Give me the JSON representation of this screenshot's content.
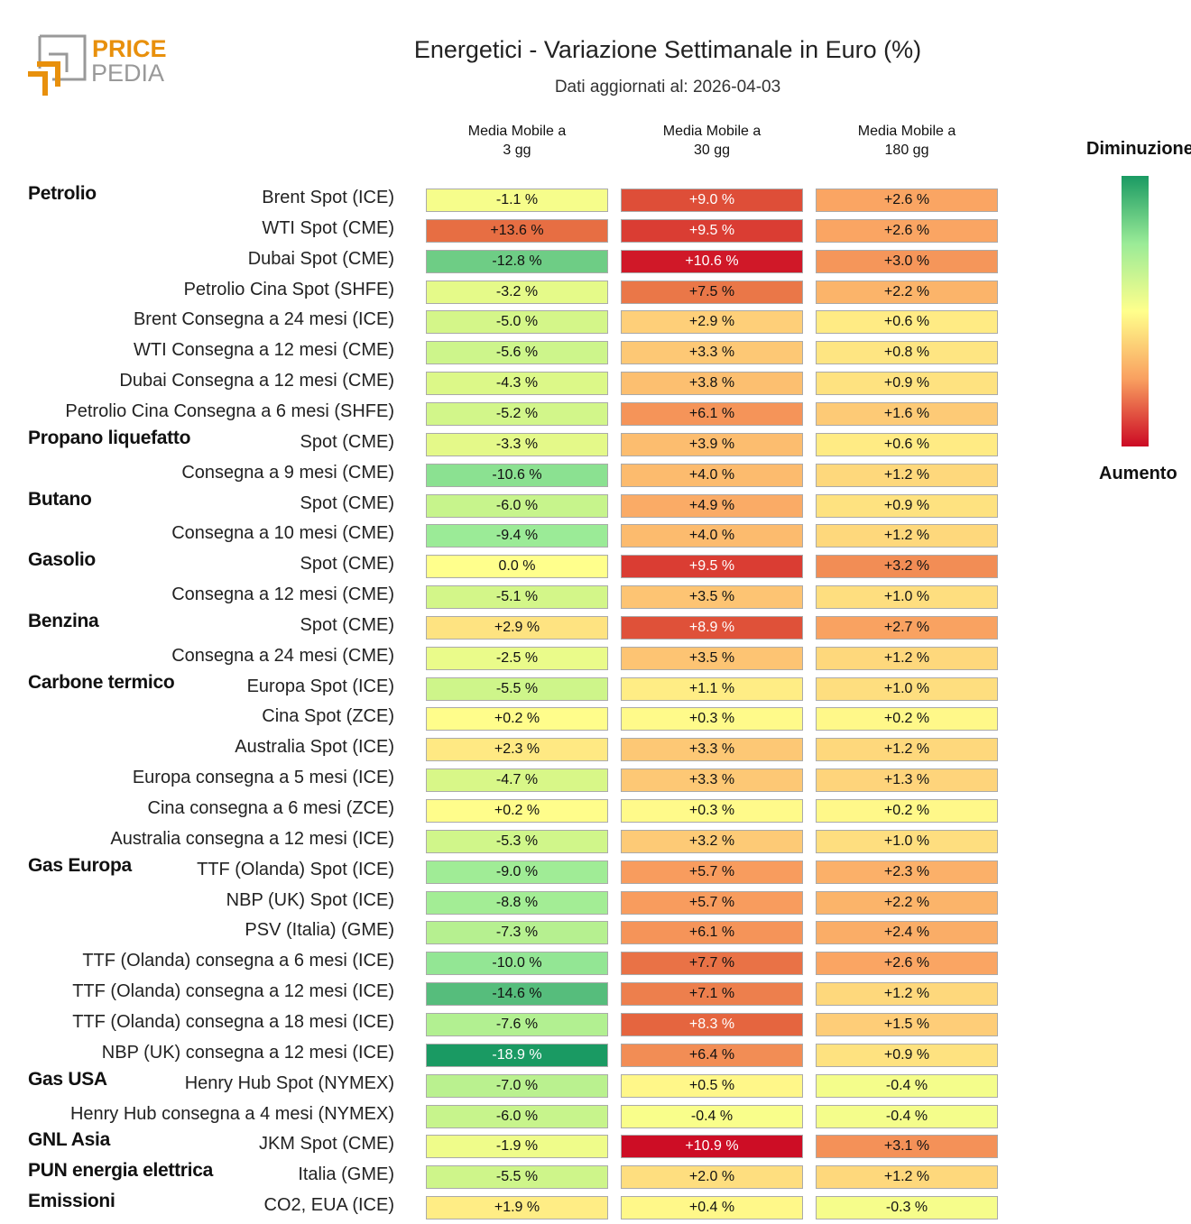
{
  "logo_text": [
    "PRICE",
    "PEDIA"
  ],
  "title": "Energetici - Variazione Settimanale in Euro (%)",
  "subtitle": "Dati aggiornati al: 2026-04-03",
  "legend": {
    "top": "Diminuzione",
    "bottom": "Aumento"
  },
  "chart_data": {
    "type": "heatmap",
    "title": "Energetici - Variazione Settimanale in Euro (%)",
    "columns": [
      "Media Mobile a\n3 gg",
      "Media Mobile a\n30 gg",
      "Media Mobile a\n180 gg"
    ],
    "unit": "%",
    "colorscale": {
      "negative": "#1a9a63",
      "zero": "#ffff8c",
      "positive": "#cc0a24"
    },
    "rows": [
      {
        "group": "Petrolio",
        "label": "Brent Spot (ICE)",
        "values": [
          -1.1,
          9.0,
          2.6
        ]
      },
      {
        "group": "",
        "label": "WTI Spot (CME)",
        "values": [
          13.6,
          9.5,
          2.6
        ]
      },
      {
        "group": "",
        "label": "Dubai Spot (CME)",
        "values": [
          -12.8,
          10.6,
          3.0
        ]
      },
      {
        "group": "",
        "label": "Petrolio Cina Spot (SHFE)",
        "values": [
          -3.2,
          7.5,
          2.2
        ]
      },
      {
        "group": "",
        "label": "Brent Consegna a 24 mesi (ICE)",
        "values": [
          -5.0,
          2.9,
          0.6
        ]
      },
      {
        "group": "",
        "label": "WTI Consegna a 12 mesi (CME)",
        "values": [
          -5.6,
          3.3,
          0.8
        ]
      },
      {
        "group": "",
        "label": "Dubai Consegna a 12 mesi (CME)",
        "values": [
          -4.3,
          3.8,
          0.9
        ]
      },
      {
        "group": "",
        "label": "Petrolio Cina Consegna a 6 mesi (SHFE)",
        "values": [
          -5.2,
          6.1,
          1.6
        ]
      },
      {
        "group": "Propano liquefatto",
        "label": "Spot (CME)",
        "values": [
          -3.3,
          3.9,
          0.6
        ]
      },
      {
        "group": "",
        "label": "Consegna a 9 mesi (CME)",
        "values": [
          -10.6,
          4.0,
          1.2
        ]
      },
      {
        "group": "Butano",
        "label": "Spot (CME)",
        "values": [
          -6.0,
          4.9,
          0.9
        ]
      },
      {
        "group": "",
        "label": "Consegna a 10 mesi (CME)",
        "values": [
          -9.4,
          4.0,
          1.2
        ]
      },
      {
        "group": "Gasolio",
        "label": "Spot (CME)",
        "values": [
          0.0,
          9.5,
          3.2
        ]
      },
      {
        "group": "",
        "label": "Consegna a 12 mesi (CME)",
        "values": [
          -5.1,
          3.5,
          1.0
        ]
      },
      {
        "group": "Benzina",
        "label": "Spot (CME)",
        "values": [
          2.9,
          8.9,
          2.7
        ]
      },
      {
        "group": "",
        "label": "Consegna a 24 mesi (CME)",
        "values": [
          -2.5,
          3.5,
          1.2
        ]
      },
      {
        "group": "Carbone termico",
        "label": "Europa Spot (ICE)",
        "values": [
          -5.5,
          1.1,
          1.0
        ]
      },
      {
        "group": "",
        "label": "Cina Spot (ZCE)",
        "values": [
          0.2,
          0.3,
          0.2
        ]
      },
      {
        "group": "",
        "label": "Australia Spot (ICE)",
        "values": [
          2.3,
          3.3,
          1.2
        ]
      },
      {
        "group": "",
        "label": "Europa consegna a 5 mesi (ICE)",
        "values": [
          -4.7,
          3.3,
          1.3
        ]
      },
      {
        "group": "",
        "label": "Cina consegna a 6 mesi (ZCE)",
        "values": [
          0.2,
          0.3,
          0.2
        ]
      },
      {
        "group": "",
        "label": "Australia consegna a 12 mesi (ICE)",
        "values": [
          -5.3,
          3.2,
          1.0
        ]
      },
      {
        "group": "Gas Europa",
        "label": "TTF (Olanda) Spot (ICE)",
        "values": [
          -9.0,
          5.7,
          2.3
        ]
      },
      {
        "group": "",
        "label": "NBP (UK) Spot (ICE)",
        "values": [
          -8.8,
          5.7,
          2.2
        ]
      },
      {
        "group": "",
        "label": "PSV (Italia) (GME)",
        "values": [
          -7.3,
          6.1,
          2.4
        ]
      },
      {
        "group": "",
        "label": "TTF (Olanda) consegna a 6 mesi (ICE)",
        "values": [
          -10.0,
          7.7,
          2.6
        ]
      },
      {
        "group": "",
        "label": "TTF (Olanda) consegna a 12 mesi (ICE)",
        "values": [
          -14.6,
          7.1,
          1.2
        ]
      },
      {
        "group": "",
        "label": "TTF (Olanda) consegna a 18 mesi (ICE)",
        "values": [
          -7.6,
          8.3,
          1.5
        ]
      },
      {
        "group": "",
        "label": "NBP (UK) consegna a 12 mesi (ICE)",
        "values": [
          -18.9,
          6.4,
          0.9
        ]
      },
      {
        "group": "Gas USA",
        "label": "Henry Hub Spot (NYMEX)",
        "values": [
          -7.0,
          0.5,
          -0.4
        ]
      },
      {
        "group": "",
        "label": "Henry Hub consegna a 4 mesi (NYMEX)",
        "values": [
          -6.0,
          -0.4,
          -0.4
        ]
      },
      {
        "group": "GNL Asia",
        "label": "JKM Spot (CME)",
        "values": [
          -1.9,
          10.9,
          3.1
        ]
      },
      {
        "group": "PUN energia elettrica",
        "label": "Italia (GME)",
        "values": [
          -5.5,
          2.0,
          1.2
        ]
      },
      {
        "group": "Emissioni",
        "label": "CO2, EUA (ICE)",
        "values": [
          1.9,
          0.4,
          -0.3
        ]
      }
    ]
  }
}
